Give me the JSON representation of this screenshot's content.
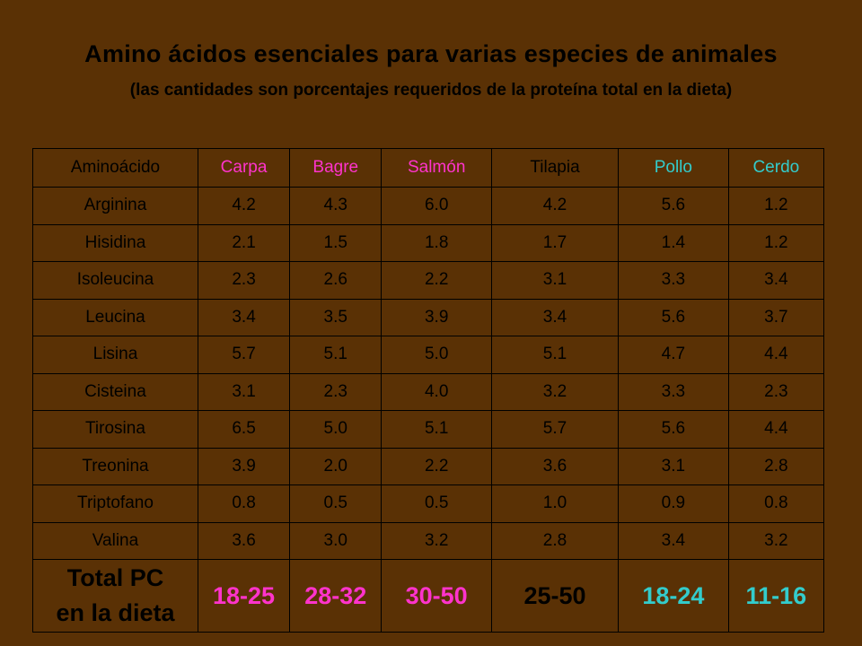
{
  "title": "Amino ácidos esenciales para varias especies de animales",
  "subtitle": "(las cantidades son porcentajes requeridos de la proteína total en la dieta)",
  "colors": {
    "background": "#5a3105",
    "text": "#000000",
    "fish_highlight": "#ff33cc",
    "terrestrial_highlight": "#33cccc"
  },
  "table": {
    "header": {
      "aminoacido": "Aminoácido",
      "carpa": "Carpa",
      "bagre": "Bagre",
      "salmon": "Salmón",
      "tilapia": "Tilapia",
      "pollo": "Pollo",
      "cerdo": "Cerdo"
    },
    "rows": [
      {
        "aminoacido": "Arginina",
        "carpa": "4.2",
        "bagre": "4.3",
        "salmon": "6.0",
        "tilapia": "4.2",
        "pollo": "5.6",
        "cerdo": "1.2"
      },
      {
        "aminoacido": "Hisidina",
        "carpa": "2.1",
        "bagre": "1.5",
        "salmon": "1.8",
        "tilapia": "1.7",
        "pollo": "1.4",
        "cerdo": "1.2"
      },
      {
        "aminoacido": "Isoleucina",
        "carpa": "2.3",
        "bagre": "2.6",
        "salmon": "2.2",
        "tilapia": "3.1",
        "pollo": "3.3",
        "cerdo": "3.4"
      },
      {
        "aminoacido": "Leucina",
        "carpa": "3.4",
        "bagre": "3.5",
        "salmon": "3.9",
        "tilapia": "3.4",
        "pollo": "5.6",
        "cerdo": "3.7"
      },
      {
        "aminoacido": "Lisina",
        "carpa": "5.7",
        "bagre": "5.1",
        "salmon": "5.0",
        "tilapia": "5.1",
        "pollo": "4.7",
        "cerdo": "4.4"
      },
      {
        "aminoacido": "Cisteina",
        "carpa": "3.1",
        "bagre": "2.3",
        "salmon": "4.0",
        "tilapia": "3.2",
        "pollo": "3.3",
        "cerdo": "2.3"
      },
      {
        "aminoacido": "Tirosina",
        "carpa": "6.5",
        "bagre": "5.0",
        "salmon": "5.1",
        "tilapia": "5.7",
        "pollo": "5.6",
        "cerdo": "4.4"
      },
      {
        "aminoacido": "Treonina",
        "carpa": "3.9",
        "bagre": "2.0",
        "salmon": "2.2",
        "tilapia": "3.6",
        "pollo": "3.1",
        "cerdo": "2.8"
      },
      {
        "aminoacido": "Triptofano",
        "carpa": "0.8",
        "bagre": "0.5",
        "salmon": "0.5",
        "tilapia": "1.0",
        "pollo": "0.9",
        "cerdo": "0.8"
      },
      {
        "aminoacido": "Valina",
        "carpa": "3.6",
        "bagre": "3.0",
        "salmon": "3.2",
        "tilapia": "2.8",
        "pollo": "3.4",
        "cerdo": "3.2"
      }
    ],
    "total": {
      "label_line1": "Total PC",
      "label_line2": "en la dieta",
      "carpa": "18-25",
      "bagre": "28-32",
      "salmon": "30-50",
      "tilapia": "25-50",
      "pollo": "18-24",
      "cerdo": "11-16"
    }
  }
}
